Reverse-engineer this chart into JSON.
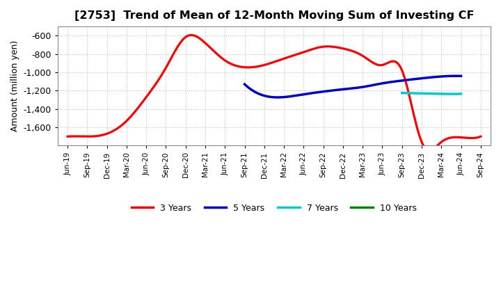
{
  "title": "[2753]  Trend of Mean of 12-Month Moving Sum of Investing CF",
  "ylabel": "Amount (million yen)",
  "background_color": "#ffffff",
  "grid_color": "#bbbbbb",
  "ylim": [
    -1800,
    -500
  ],
  "yticks": [
    -1600,
    -1400,
    -1200,
    -1000,
    -800,
    -600
  ],
  "x_labels": [
    "Jun-19",
    "Sep-19",
    "Dec-19",
    "Mar-20",
    "Jun-20",
    "Sep-20",
    "Dec-20",
    "Mar-21",
    "Jun-21",
    "Sep-21",
    "Dec-21",
    "Mar-22",
    "Jun-22",
    "Sep-22",
    "Dec-22",
    "Mar-23",
    "Jun-23",
    "Sep-23",
    "Dec-23",
    "Mar-24",
    "Jun-24",
    "Sep-24"
  ],
  "series_3y": {
    "color": "#ff0000",
    "label": "3 Years",
    "x": [
      0,
      1,
      2,
      3,
      4,
      5,
      6,
      7,
      8,
      9,
      10,
      11,
      12,
      13,
      14,
      15,
      16,
      17,
      18,
      19,
      20,
      21
    ],
    "y": [
      -1700,
      -1700,
      -1670,
      -1530,
      -1270,
      -950,
      -615,
      -680,
      -870,
      -945,
      -920,
      -850,
      -780,
      -720,
      -740,
      -820,
      -920,
      -980,
      -1760,
      -1760,
      -1710,
      -1700
    ]
  },
  "series_5y": {
    "color": "#0000cc",
    "label": "5 Years",
    "x": [
      9,
      10,
      11,
      12,
      13,
      14,
      15,
      16,
      17,
      18,
      19,
      20
    ],
    "y": [
      -1130,
      -1255,
      -1270,
      -1240,
      -1210,
      -1185,
      -1160,
      -1120,
      -1090,
      -1065,
      -1045,
      -1040
    ]
  },
  "series_7y": {
    "color": "#00cccc",
    "label": "7 Years",
    "x": [
      17,
      18,
      19,
      20
    ],
    "y": [
      -1225,
      -1230,
      -1235,
      -1235
    ]
  },
  "series_10y": {
    "color": "#008800",
    "label": "10 Years",
    "x": [],
    "y": []
  },
  "legend_colors": [
    "#ff0000",
    "#0000cc",
    "#00cccc",
    "#008800"
  ],
  "legend_labels": [
    "3 Years",
    "5 Years",
    "7 Years",
    "10 Years"
  ]
}
